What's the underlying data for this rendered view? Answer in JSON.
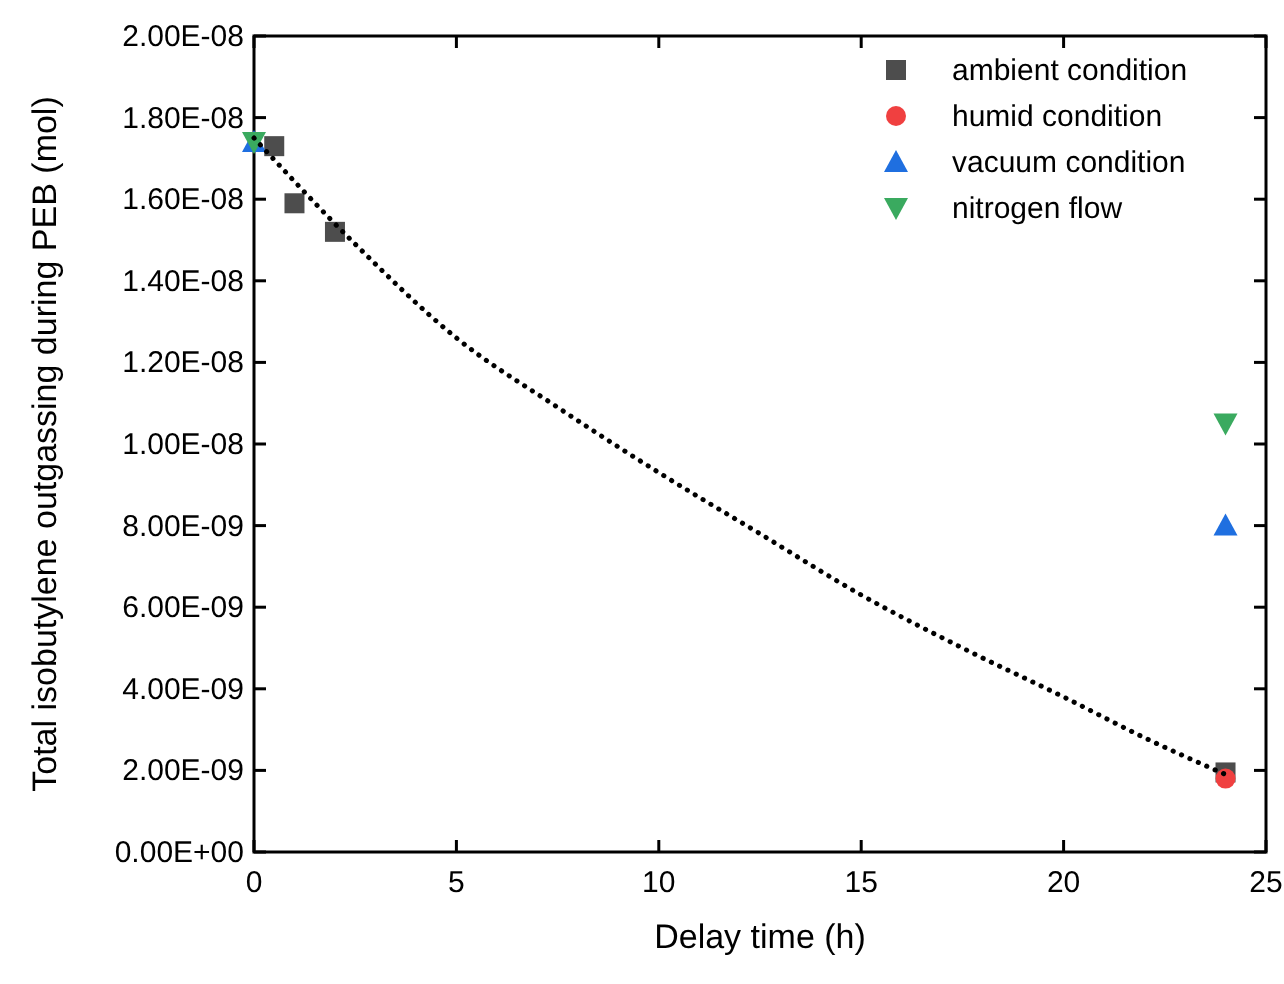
{
  "chart_data": {
    "type": "scatter",
    "xlabel": "Delay time (h)",
    "ylabel": "Total isobutylene outgassing during PEB (mol)",
    "xlim": [
      0,
      25
    ],
    "ylim": [
      0,
      2e-08
    ],
    "xticks": [
      0,
      5,
      10,
      15,
      20,
      25
    ],
    "yticks": [
      {
        "value": 0,
        "label": "0.00E+00"
      },
      {
        "value": 2e-09,
        "label": "2.00E-09"
      },
      {
        "value": 4e-09,
        "label": "4.00E-09"
      },
      {
        "value": 6e-09,
        "label": "6.00E-09"
      },
      {
        "value": 8e-09,
        "label": "8.00E-09"
      },
      {
        "value": 1e-08,
        "label": "1.00E-08"
      },
      {
        "value": 1.2e-08,
        "label": "1.20E-08"
      },
      {
        "value": 1.4e-08,
        "label": "1.40E-08"
      },
      {
        "value": 1.6e-08,
        "label": "1.60E-08"
      },
      {
        "value": 1.8e-08,
        "label": "1.80E-08"
      },
      {
        "value": 2e-08,
        "label": "2.00E-08"
      }
    ],
    "legend": "top right",
    "grid": false,
    "series": [
      {
        "name": "ambient condition",
        "color": "#4d4d4d",
        "marker": "square",
        "x": [
          0.5,
          1,
          2,
          24
        ],
        "values": [
          1.73e-08,
          1.59e-08,
          1.52e-08,
          1.95e-09
        ]
      },
      {
        "name": "humid condition",
        "color": "#f04040",
        "marker": "circle",
        "x": [
          24
        ],
        "values": [
          1.8e-09
        ]
      },
      {
        "name": "vacuum condition",
        "color": "#1f6fe0",
        "marker": "triangle",
        "x": [
          0,
          24
        ],
        "values": [
          1.74e-08,
          8e-09
        ]
      },
      {
        "name": "nitrogen flow",
        "color": "#3aaa5f",
        "marker": "triangle-down",
        "x": [
          0,
          24
        ],
        "values": [
          1.74e-08,
          1.05e-08
        ]
      },
      {
        "type": "line",
        "color": "#000000",
        "line_style": "dotted",
        "x": [
          0,
          2.5,
          5,
          7.5,
          10,
          12.5,
          15,
          17.5,
          20,
          22,
          24
        ],
        "values": [
          1.75e-08,
          1.49e-08,
          1.26e-08,
          1.09e-08,
          9.3e-09,
          7.8e-09,
          6.3e-09,
          5e-09,
          3.8e-09,
          2.8e-09,
          1.9e-09
        ]
      }
    ]
  }
}
